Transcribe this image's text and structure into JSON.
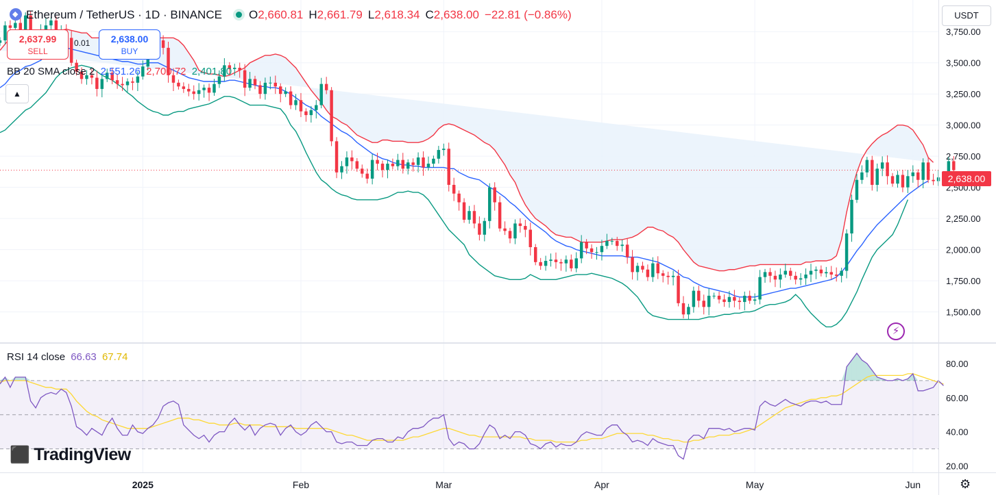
{
  "header": {
    "symbol": "Ethereum / TetherUS · 1D · BINANCE",
    "ohlc": {
      "o_label": "O",
      "o": "2,660.81",
      "h_label": "H",
      "h": "2,661.79",
      "l_label": "L",
      "l": "2,618.34",
      "c_label": "C",
      "c": "2,638.00",
      "change": "−22.81 (−0.86%)"
    },
    "sell": {
      "price": "2,637.99",
      "label": "SELL"
    },
    "buy": {
      "price": "2,638.00",
      "label": "BUY"
    },
    "spread": "0.01",
    "currency": "USDT"
  },
  "indicators": {
    "bb": {
      "label": "BB 20 SMA close 2",
      "basis": "2,551.26",
      "upper": "2,700.72",
      "lower": "2,401.80"
    },
    "rsi": {
      "label": "RSI 14 close",
      "value": "66.63",
      "ma": "67.74"
    }
  },
  "last_price_tag": "2,638.00",
  "brand": "TradingView",
  "colors": {
    "up": "#089981",
    "down": "#f23645",
    "bb_basis": "#2962ff",
    "bb_upper": "#f23645",
    "bb_lower": "#089981",
    "bb_fill": "#e9f2fb",
    "rsi": "#7e57c2",
    "rsi_ma": "#fdd835",
    "rsi_band": "#7e57c2"
  },
  "chart_data": [
    {
      "type": "candlestick",
      "title": "Ethereum / TetherUS · 1D · BINANCE",
      "ylim": [
        1300,
        3960
      ],
      "y_ticks": [
        {
          "value": 3750,
          "label": "3,750.00"
        },
        {
          "value": 3500,
          "label": "3,500.00"
        },
        {
          "value": 3250,
          "label": "3,250.00"
        },
        {
          "value": 3000,
          "label": "3,000.00"
        },
        {
          "value": 2750,
          "label": "2,750.00"
        },
        {
          "value": 2500,
          "label": "2,500.00"
        },
        {
          "value": 2250,
          "label": "2,250.00"
        },
        {
          "value": 2000,
          "label": "2,000.00"
        },
        {
          "value": 1750,
          "label": "1,750.00"
        },
        {
          "value": 1500,
          "label": "1,500.00"
        }
      ],
      "x_range": [
        "2024-12-04",
        "2025-06-06"
      ],
      "x_ticks": [
        {
          "date": "2025-01-01",
          "label": "2025"
        },
        {
          "date": "2025-02-01",
          "label": "Feb"
        },
        {
          "date": "2025-03-01",
          "label": "Mar"
        },
        {
          "date": "2025-04-01",
          "label": "Apr"
        },
        {
          "date": "2025-05-01",
          "label": "May"
        },
        {
          "date": "2025-06-01",
          "label": "Jun"
        }
      ],
      "last_close": 2638.0,
      "candles_start": "2024-12-04",
      "closes": [
        3680,
        3800,
        3780,
        3820,
        3740,
        3880,
        3660,
        3650,
        3760,
        3800,
        3840,
        3720,
        3760,
        3700,
        3500,
        3430,
        3370,
        3400,
        3380,
        3290,
        3370,
        3420,
        3360,
        3330,
        3320,
        3350,
        3340,
        3390,
        3470,
        3630,
        3660,
        3680,
        3620,
        3400,
        3340,
        3310,
        3290,
        3270,
        3250,
        3280,
        3300,
        3260,
        3330,
        3390,
        3480,
        3450,
        3460,
        3440,
        3300,
        3370,
        3320,
        3250,
        3340,
        3340,
        3310,
        3250,
        3270,
        3160,
        3200,
        3110,
        3080,
        3120,
        3160,
        3330,
        3280,
        2870,
        2620,
        2670,
        2740,
        2710,
        2650,
        2610,
        2570,
        2720,
        2690,
        2640,
        2690,
        2670,
        2720,
        2650,
        2700,
        2680,
        2740,
        2660,
        2690,
        2730,
        2800,
        2810,
        2520,
        2450,
        2380,
        2240,
        2310,
        2210,
        2120,
        2230,
        2500,
        2380,
        2170,
        2150,
        2090,
        2210,
        2190,
        2160,
        2020,
        1900,
        1870,
        1910,
        1920,
        1900,
        1890,
        1920,
        1850,
        1930,
        2060,
        2010,
        1980,
        1980,
        2030,
        2070,
        2070,
        2030,
        2040,
        1940,
        1820,
        1870,
        1840,
        1780,
        1890,
        1810,
        1790,
        1780,
        1790,
        1570,
        1480,
        1540,
        1670,
        1590,
        1540,
        1630,
        1630,
        1600,
        1580,
        1620,
        1590,
        1580,
        1630,
        1590,
        1600,
        1780,
        1820,
        1790,
        1760,
        1800,
        1830,
        1790,
        1760,
        1770,
        1800,
        1830,
        1840,
        1810,
        1820,
        1800,
        1790,
        1830,
        2130,
        2400,
        2560,
        2620,
        2720,
        2520,
        2650,
        2700,
        2590,
        2530,
        2600,
        2500,
        2590,
        2620,
        2560,
        2700,
        2560,
        2550,
        2580,
        2600,
        2710,
        2638
      ],
      "bb_upper": [
        3600,
        3650,
        3700,
        3720,
        3740,
        3760,
        3760,
        3760,
        3760,
        3760,
        3760,
        3760,
        3760,
        3770,
        3760,
        3750,
        3740,
        3740,
        3700,
        3700,
        3700,
        3700,
        3700,
        3710,
        3710,
        3710,
        3700,
        3690,
        3690,
        3700,
        3700,
        3700,
        3700,
        3700,
        3700,
        3680,
        3640,
        3580,
        3520,
        3440,
        3420,
        3410,
        3410,
        3400,
        3390,
        3400,
        3420,
        3440,
        3460,
        3500,
        3520,
        3540,
        3560,
        3560,
        3570,
        3560,
        3540,
        3500,
        3460,
        3400,
        3340,
        3280,
        3230,
        3180,
        3120,
        3070,
        3050,
        3020,
        3000,
        2960,
        2920,
        2900,
        2880,
        2860,
        2860,
        2880,
        2880,
        2870,
        2870,
        2870,
        2860,
        2860,
        2860,
        2870,
        2890,
        2920,
        2970,
        3000,
        3010,
        3000,
        2980,
        2960,
        2940,
        2920,
        2890,
        2860,
        2840,
        2800,
        2740,
        2680,
        2600,
        2540,
        2440,
        2360,
        2300,
        2250,
        2220,
        2190,
        2150,
        2120,
        2110,
        2100,
        2100,
        2080,
        2060,
        2060,
        2060,
        2060,
        2060,
        2070,
        2080,
        2080,
        2080,
        2090,
        2100,
        2120,
        2150,
        2180,
        2180,
        2160,
        2150,
        2120,
        2100,
        2060,
        2000,
        1950,
        1900,
        1870,
        1860,
        1850,
        1840,
        1830,
        1830,
        1840,
        1840,
        1850,
        1860,
        1870,
        1870,
        1880,
        1880,
        1880,
        1880,
        1880,
        1880,
        1880,
        1880,
        1880,
        1900,
        1900,
        1910,
        1910,
        1910,
        1920,
        1950,
        2080,
        2300,
        2480,
        2620,
        2730,
        2800,
        2850,
        2890,
        2920,
        2940,
        2970,
        3000,
        3000,
        2990,
        2960,
        2900,
        2840,
        2740,
        2700
      ],
      "bb_basis": [
        3300,
        3330,
        3380,
        3420,
        3440,
        3470,
        3480,
        3500,
        3520,
        3560,
        3580,
        3600,
        3610,
        3620,
        3610,
        3600,
        3590,
        3580,
        3570,
        3560,
        3550,
        3540,
        3530,
        3520,
        3510,
        3510,
        3500,
        3490,
        3490,
        3500,
        3500,
        3500,
        3480,
        3460,
        3440,
        3420,
        3400,
        3380,
        3370,
        3360,
        3350,
        3350,
        3350,
        3350,
        3350,
        3360,
        3360,
        3350,
        3340,
        3330,
        3320,
        3310,
        3310,
        3300,
        3300,
        3290,
        3270,
        3250,
        3220,
        3190,
        3160,
        3140,
        3110,
        3070,
        3040,
        3010,
        2980,
        2950,
        2930,
        2900,
        2860,
        2830,
        2800,
        2770,
        2750,
        2730,
        2720,
        2700,
        2690,
        2680,
        2680,
        2670,
        2670,
        2660,
        2660,
        2660,
        2660,
        2660,
        2650,
        2650,
        2620,
        2600,
        2580,
        2570,
        2560,
        2530,
        2500,
        2480,
        2450,
        2420,
        2380,
        2350,
        2310,
        2270,
        2230,
        2200,
        2170,
        2140,
        2100,
        2070,
        2050,
        2030,
        2020,
        2000,
        1990,
        1980,
        1970,
        1960,
        1950,
        1950,
        1950,
        1950,
        1950,
        1940,
        1940,
        1940,
        1930,
        1920,
        1910,
        1900,
        1880,
        1860,
        1840,
        1810,
        1780,
        1770,
        1740,
        1720,
        1700,
        1690,
        1680,
        1670,
        1660,
        1650,
        1630,
        1620,
        1620,
        1620,
        1620,
        1630,
        1640,
        1650,
        1660,
        1670,
        1680,
        1690,
        1690,
        1700,
        1710,
        1720,
        1730,
        1740,
        1750,
        1760,
        1780,
        1820,
        1870,
        1930,
        1990,
        2040,
        2100,
        2150,
        2200,
        2240,
        2280,
        2320,
        2360,
        2400,
        2440,
        2470,
        2500,
        2530,
        2551
      ],
      "bb_lower": [
        2940,
        2960,
        3000,
        3040,
        3080,
        3120,
        3140,
        3180,
        3220,
        3260,
        3320,
        3380,
        3420,
        3440,
        3460,
        3470,
        3480,
        3470,
        3460,
        3430,
        3400,
        3380,
        3360,
        3330,
        3300,
        3260,
        3230,
        3190,
        3160,
        3130,
        3110,
        3100,
        3080,
        3080,
        3100,
        3110,
        3110,
        3130,
        3140,
        3150,
        3160,
        3170,
        3190,
        3210,
        3230,
        3230,
        3220,
        3200,
        3180,
        3160,
        3160,
        3160,
        3160,
        3150,
        3140,
        3130,
        3080,
        3000,
        2950,
        2870,
        2780,
        2700,
        2620,
        2560,
        2530,
        2490,
        2460,
        2440,
        2430,
        2410,
        2400,
        2400,
        2400,
        2400,
        2400,
        2410,
        2420,
        2440,
        2460,
        2460,
        2470,
        2460,
        2460,
        2440,
        2400,
        2340,
        2280,
        2220,
        2160,
        2120,
        2080,
        2040,
        1960,
        1920,
        1880,
        1850,
        1820,
        1790,
        1780,
        1770,
        1760,
        1760,
        1760,
        1770,
        1800,
        1780,
        1760,
        1760,
        1760,
        1760,
        1770,
        1780,
        1790,
        1800,
        1800,
        1800,
        1810,
        1800,
        1790,
        1780,
        1770,
        1750,
        1730,
        1700,
        1660,
        1620,
        1560,
        1500,
        1470,
        1460,
        1450,
        1440,
        1440,
        1440,
        1440,
        1440,
        1440,
        1440,
        1450,
        1460,
        1460,
        1470,
        1480,
        1480,
        1490,
        1490,
        1500,
        1500,
        1510,
        1530,
        1550,
        1560,
        1560,
        1570,
        1580,
        1600,
        1640,
        1600,
        1540,
        1490,
        1450,
        1410,
        1380,
        1380,
        1400,
        1440,
        1500,
        1580,
        1660,
        1760,
        1850,
        1940,
        2000,
        2040,
        2080,
        2120,
        2200,
        2301,
        2401
      ]
    },
    {
      "type": "line",
      "title": "RSI 14 close",
      "ylim": [
        17,
        90
      ],
      "y_ticks": [
        {
          "value": 80,
          "label": "80.00"
        },
        {
          "value": 60,
          "label": "60.00"
        },
        {
          "value": 40,
          "label": "40.00"
        },
        {
          "value": 20,
          "label": "20.00"
        }
      ],
      "band": [
        30,
        70
      ],
      "middle": 50,
      "series": [
        {
          "name": "RSI",
          "values": [
            68,
            72,
            66,
            72,
            72,
            72,
            58,
            54,
            60,
            62,
            63,
            62,
            65,
            63,
            55,
            43,
            41,
            38,
            42,
            40,
            38,
            44,
            48,
            42,
            38,
            38,
            44,
            40,
            39,
            42,
            44,
            48,
            55,
            57,
            58,
            56,
            44,
            41,
            38,
            36,
            38,
            34,
            38,
            40,
            40,
            45,
            48,
            44,
            41,
            44,
            38,
            42,
            44,
            45,
            44,
            38,
            42,
            44,
            40,
            38,
            40,
            44,
            46,
            43,
            40,
            40,
            34,
            33,
            34,
            34,
            32,
            32,
            32,
            35,
            36,
            36,
            34,
            34,
            37,
            36,
            40,
            42,
            42,
            43,
            46,
            48,
            48,
            50,
            36,
            32,
            34,
            33,
            30,
            30,
            33,
            39,
            44,
            42,
            36,
            38,
            36,
            40,
            40,
            38,
            33,
            32,
            30,
            33,
            34,
            31,
            33,
            32,
            32,
            34,
            38,
            40,
            39,
            38,
            38,
            42,
            44,
            44,
            40,
            38,
            34,
            35,
            34,
            32,
            36,
            34,
            33,
            32,
            32,
            26,
            24,
            35,
            38,
            38,
            36,
            42,
            42,
            42,
            41,
            42,
            40,
            41,
            42,
            42,
            41,
            55,
            58,
            56,
            55,
            57,
            59,
            57,
            56,
            55,
            57,
            58,
            58,
            57,
            58,
            56,
            56,
            56,
            78,
            82,
            86,
            82,
            80,
            76,
            72,
            71,
            70,
            70,
            71,
            70,
            71,
            74,
            64,
            64,
            65,
            66,
            70,
            67
          ]
        },
        {
          "name": "RSI MA",
          "values": [
            69,
            70,
            70,
            70,
            70,
            70,
            69,
            68,
            67,
            66,
            66,
            65,
            65,
            65,
            62,
            58,
            55,
            52,
            50,
            49,
            47,
            46,
            45,
            44,
            43,
            42,
            42,
            42,
            42,
            42,
            43,
            44,
            45,
            46,
            47,
            48,
            48,
            48,
            47,
            47,
            46,
            45,
            45,
            44,
            44,
            44,
            45,
            45,
            44,
            44,
            44,
            44,
            43,
            43,
            43,
            43,
            43,
            43,
            42,
            42,
            42,
            42,
            42,
            42,
            42,
            41,
            40,
            39,
            38,
            38,
            37,
            36,
            35,
            35,
            35,
            35,
            35,
            35,
            35,
            35,
            36,
            37,
            37,
            38,
            39,
            40,
            41,
            42,
            42,
            41,
            40,
            39,
            38,
            38,
            37,
            37,
            37,
            37,
            37,
            37,
            37,
            37,
            37,
            36,
            36,
            35,
            35,
            35,
            35,
            34,
            34,
            34,
            34,
            34,
            35,
            35,
            36,
            36,
            36,
            37,
            38,
            39,
            39,
            39,
            39,
            39,
            39,
            38,
            38,
            37,
            36,
            36,
            35,
            35,
            34,
            34,
            35,
            35,
            36,
            37,
            37,
            38,
            38,
            38,
            39,
            39,
            40,
            41,
            42,
            44,
            46,
            48,
            50,
            52,
            54,
            55,
            56,
            57,
            58,
            59,
            59,
            60,
            60,
            61,
            61,
            62,
            64,
            66,
            68,
            70,
            72,
            73,
            73,
            73,
            73,
            73,
            73,
            73,
            74,
            74,
            73,
            72,
            71,
            70,
            69,
            68
          ]
        }
      ]
    }
  ]
}
